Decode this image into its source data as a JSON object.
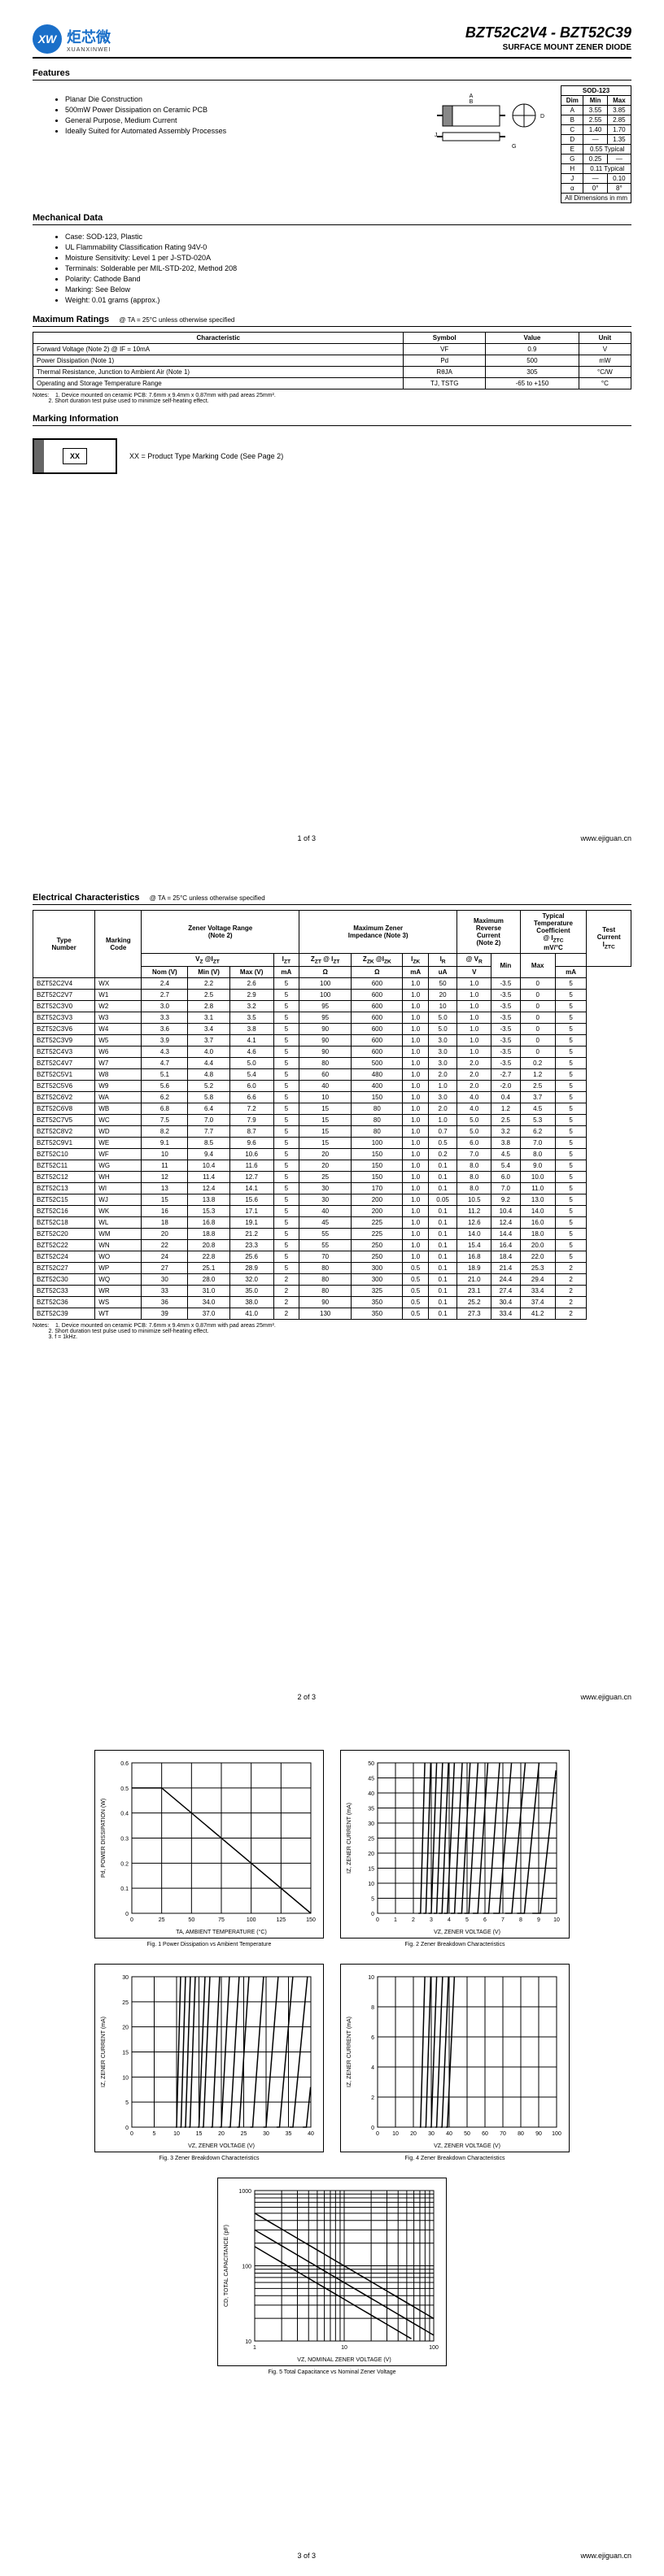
{
  "header": {
    "brand": "炬芯微",
    "brand_en": "XUANXINWEI",
    "logo": "XW",
    "title": "BZT52C2V4 - BZT52C39",
    "subtitle": "SURFACE MOUNT ZENER DIODE"
  },
  "features": [
    "Planar Die Construction",
    "500mW Power Dissipation on Ceramic PCB",
    "General Purpose, Medium Current",
    "Ideally Suited for Automated Assembly Processes"
  ],
  "mechanical": [
    "Case: SOD-123, Plastic",
    "UL Flammability Classification Rating 94V-0",
    "Moisture Sensitivity: Level 1 per J-STD-020A",
    "Terminals: Solderable per MIL-STD-202, Method 208",
    "Polarity: Cathode Band",
    "Marking: See Below",
    "Weight: 0.01 grams (approx.)"
  ],
  "dim_title": "SOD-123",
  "dim_headers": [
    "Dim",
    "Min",
    "Max"
  ],
  "dim_rows": [
    [
      "A",
      "3.55",
      "3.85"
    ],
    [
      "B",
      "2.55",
      "2.85"
    ],
    [
      "C",
      "1.40",
      "1.70"
    ],
    [
      "D",
      "—",
      "1.35"
    ],
    [
      "E",
      "0.55 Typical",
      ""
    ],
    [
      "G",
      "0.25",
      "—"
    ],
    [
      "H",
      "0.11 Typical",
      ""
    ],
    [
      "J",
      "—",
      "0.10"
    ],
    [
      "α",
      "0°",
      "8°"
    ]
  ],
  "dim_footer": "All Dimensions in mm",
  "ratings_title": "Maximum Ratings",
  "ratings_cond": "@ TA = 25°C unless otherwise specified",
  "ratings_headers": [
    "Characteristic",
    "Symbol",
    "Value",
    "Unit"
  ],
  "ratings_rows": [
    [
      "Forward Voltage (Note 2)              @ IF = 10mA",
      "VF",
      "0.9",
      "V"
    ],
    [
      "Power Dissipation (Note 1)",
      "Pd",
      "500",
      "mW"
    ],
    [
      "Thermal Resistance, Junction to Ambient Air (Note 1)",
      "RθJA",
      "305",
      "°C/W"
    ],
    [
      "Operating and Storage Temperature Range",
      "TJ, TSTG",
      "-65 to +150",
      "°C"
    ]
  ],
  "ratings_notes": "Notes:    1. Device mounted on ceramic PCB: 7.6mm x 9.4mm x 0.87mm with pad areas 25mm².\n          2. Short duration test pulse used to minimize self-heating effect.",
  "marking_title": "Marking Information",
  "marking_code": "XX",
  "marking_desc": "XX = Product Type Marking Code (See Page 2)",
  "elec_title": "Electrical Characteristics",
  "elec_cond": "@ TA = 25°C unless otherwise specified",
  "elec_notes": "Notes:    1. Device mounted on ceramic PCB: 7.6mm x 9.4mm x 0.87mm with pad areas 25mm².\n          2. Short duration test pulse used to minimize self-heating effect.\n          3. f = 1kHz.",
  "elec_rows": [
    [
      "BZT52C2V4",
      "WX",
      "2.4",
      "2.2",
      "2.6",
      "5",
      "100",
      "600",
      "1.0",
      "50",
      "1.0",
      "-3.5",
      "0",
      "5"
    ],
    [
      "BZT52C2V7",
      "W1",
      "2.7",
      "2.5",
      "2.9",
      "5",
      "100",
      "600",
      "1.0",
      "20",
      "1.0",
      "-3.5",
      "0",
      "5"
    ],
    [
      "BZT52C3V0",
      "W2",
      "3.0",
      "2.8",
      "3.2",
      "5",
      "95",
      "600",
      "1.0",
      "10",
      "1.0",
      "-3.5",
      "0",
      "5"
    ],
    [
      "BZT52C3V3",
      "W3",
      "3.3",
      "3.1",
      "3.5",
      "5",
      "95",
      "600",
      "1.0",
      "5.0",
      "1.0",
      "-3.5",
      "0",
      "5"
    ],
    [
      "BZT52C3V6",
      "W4",
      "3.6",
      "3.4",
      "3.8",
      "5",
      "90",
      "600",
      "1.0",
      "5.0",
      "1.0",
      "-3.5",
      "0",
      "5"
    ],
    [
      "BZT52C3V9",
      "W5",
      "3.9",
      "3.7",
      "4.1",
      "5",
      "90",
      "600",
      "1.0",
      "3.0",
      "1.0",
      "-3.5",
      "0",
      "5"
    ],
    [
      "BZT52C4V3",
      "W6",
      "4.3",
      "4.0",
      "4.6",
      "5",
      "90",
      "600",
      "1.0",
      "3.0",
      "1.0",
      "-3.5",
      "0",
      "5"
    ],
    [
      "BZT52C4V7",
      "W7",
      "4.7",
      "4.4",
      "5.0",
      "5",
      "80",
      "500",
      "1.0",
      "3.0",
      "2.0",
      "-3.5",
      "0.2",
      "5"
    ],
    [
      "BZT52C5V1",
      "W8",
      "5.1",
      "4.8",
      "5.4",
      "5",
      "60",
      "480",
      "1.0",
      "2.0",
      "2.0",
      "-2.7",
      "1.2",
      "5"
    ],
    [
      "BZT52C5V6",
      "W9",
      "5.6",
      "5.2",
      "6.0",
      "5",
      "40",
      "400",
      "1.0",
      "1.0",
      "2.0",
      "-2.0",
      "2.5",
      "5"
    ],
    [
      "BZT52C6V2",
      "WA",
      "6.2",
      "5.8",
      "6.6",
      "5",
      "10",
      "150",
      "1.0",
      "3.0",
      "4.0",
      "0.4",
      "3.7",
      "5"
    ],
    [
      "BZT52C6V8",
      "WB",
      "6.8",
      "6.4",
      "7.2",
      "5",
      "15",
      "80",
      "1.0",
      "2.0",
      "4.0",
      "1.2",
      "4.5",
      "5"
    ],
    [
      "BZT52C7V5",
      "WC",
      "7.5",
      "7.0",
      "7.9",
      "5",
      "15",
      "80",
      "1.0",
      "1.0",
      "5.0",
      "2.5",
      "5.3",
      "5"
    ],
    [
      "BZT52C8V2",
      "WD",
      "8.2",
      "7.7",
      "8.7",
      "5",
      "15",
      "80",
      "1.0",
      "0.7",
      "5.0",
      "3.2",
      "6.2",
      "5"
    ],
    [
      "BZT52C9V1",
      "WE",
      "9.1",
      "8.5",
      "9.6",
      "5",
      "15",
      "100",
      "1.0",
      "0.5",
      "6.0",
      "3.8",
      "7.0",
      "5"
    ],
    [
      "BZT52C10",
      "WF",
      "10",
      "9.4",
      "10.6",
      "5",
      "20",
      "150",
      "1.0",
      "0.2",
      "7.0",
      "4.5",
      "8.0",
      "5"
    ],
    [
      "BZT52C11",
      "WG",
      "11",
      "10.4",
      "11.6",
      "5",
      "20",
      "150",
      "1.0",
      "0.1",
      "8.0",
      "5.4",
      "9.0",
      "5"
    ],
    [
      "BZT52C12",
      "WH",
      "12",
      "11.4",
      "12.7",
      "5",
      "25",
      "150",
      "1.0",
      "0.1",
      "8.0",
      "6.0",
      "10.0",
      "5"
    ],
    [
      "BZT52C13",
      "WI",
      "13",
      "12.4",
      "14.1",
      "5",
      "30",
      "170",
      "1.0",
      "0.1",
      "8.0",
      "7.0",
      "11.0",
      "5"
    ],
    [
      "BZT52C15",
      "WJ",
      "15",
      "13.8",
      "15.6",
      "5",
      "30",
      "200",
      "1.0",
      "0.05",
      "10.5",
      "9.2",
      "13.0",
      "5"
    ],
    [
      "BZT52C16",
      "WK",
      "16",
      "15.3",
      "17.1",
      "5",
      "40",
      "200",
      "1.0",
      "0.1",
      "11.2",
      "10.4",
      "14.0",
      "5"
    ],
    [
      "BZT52C18",
      "WL",
      "18",
      "16.8",
      "19.1",
      "5",
      "45",
      "225",
      "1.0",
      "0.1",
      "12.6",
      "12.4",
      "16.0",
      "5"
    ],
    [
      "BZT52C20",
      "WM",
      "20",
      "18.8",
      "21.2",
      "5",
      "55",
      "225",
      "1.0",
      "0.1",
      "14.0",
      "14.4",
      "18.0",
      "5"
    ],
    [
      "BZT52C22",
      "WN",
      "22",
      "20.8",
      "23.3",
      "5",
      "55",
      "250",
      "1.0",
      "0.1",
      "15.4",
      "16.4",
      "20.0",
      "5"
    ],
    [
      "BZT52C24",
      "WO",
      "24",
      "22.8",
      "25.6",
      "5",
      "70",
      "250",
      "1.0",
      "0.1",
      "16.8",
      "18.4",
      "22.0",
      "5"
    ],
    [
      "BZT52C27",
      "WP",
      "27",
      "25.1",
      "28.9",
      "5",
      "80",
      "300",
      "0.5",
      "0.1",
      "18.9",
      "21.4",
      "25.3",
      "2"
    ],
    [
      "BZT52C30",
      "WQ",
      "30",
      "28.0",
      "32.0",
      "2",
      "80",
      "300",
      "0.5",
      "0.1",
      "21.0",
      "24.4",
      "29.4",
      "2"
    ],
    [
      "BZT52C33",
      "WR",
      "33",
      "31.0",
      "35.0",
      "2",
      "80",
      "325",
      "0.5",
      "0.1",
      "23.1",
      "27.4",
      "33.4",
      "2"
    ],
    [
      "BZT52C36",
      "WS",
      "36",
      "34.0",
      "38.0",
      "2",
      "90",
      "350",
      "0.5",
      "0.1",
      "25.2",
      "30.4",
      "37.4",
      "2"
    ],
    [
      "BZT52C39",
      "WT",
      "39",
      "37.0",
      "41.0",
      "2",
      "130",
      "350",
      "0.5",
      "0.1",
      "27.3",
      "33.4",
      "41.2",
      "2"
    ]
  ],
  "footer_url": "www.ejiguan.cn",
  "page1": "1 of 3",
  "page2": "2 of 3",
  "page3": "3 of 3",
  "charts": {
    "fig1": {
      "title": "Fig. 1  Power Dissipation vs Ambient Temperature",
      "xlabel": "TA, AMBIENT TEMPERATURE (°C)",
      "ylabel": "Pd,  POWER DISSIPATION (W)",
      "xlim": [
        0,
        150
      ],
      "ylim": [
        0,
        0.6
      ],
      "xticks": [
        0,
        25,
        50,
        75,
        100,
        125,
        150
      ],
      "yticks": [
        0,
        0.1,
        0.2,
        0.3,
        0.4,
        0.5,
        0.6
      ],
      "line": [
        [
          0,
          0.5
        ],
        [
          25,
          0.5
        ],
        [
          150,
          0
        ]
      ]
    },
    "fig2": {
      "title": "Fig. 2  Zener Breakdown Characteristics",
      "xlabel": "VZ, ZENER VOLTAGE (V)",
      "ylabel": "IZ, ZENER CURRENT (mA)",
      "xlim": [
        0,
        10
      ],
      "ylim": [
        0,
        50
      ],
      "xticks": [
        0,
        1,
        2,
        3,
        4,
        5,
        6,
        7,
        8,
        9,
        10
      ],
      "yticks": [
        0,
        5,
        10,
        15,
        20,
        25,
        30,
        35,
        40,
        45,
        50
      ]
    },
    "fig3": {
      "title": "Fig. 3  Zener Breakdown Characteristics",
      "xlabel": "VZ, ZENER VOLTAGE (V)",
      "ylabel": "IZ, ZENER CURRENT (mA)",
      "xlim": [
        0,
        40
      ],
      "ylim": [
        0,
        30
      ],
      "xticks": [
        0,
        5,
        10,
        15,
        20,
        25,
        30,
        35,
        40
      ],
      "yticks": [
        0,
        5,
        10,
        15,
        20,
        25,
        30
      ]
    },
    "fig4": {
      "title": "Fig. 4  Zener Breakdown Characteristics",
      "xlabel": "VZ, ZENER VOLTAGE (V)",
      "ylabel": "IZ, ZENER CURRENT (mA)",
      "xlim": [
        0,
        100
      ],
      "ylim": [
        0,
        10
      ],
      "xticks": [
        0,
        10,
        20,
        30,
        40,
        50,
        60,
        70,
        80,
        90,
        100
      ],
      "yticks": [
        0,
        2,
        4,
        6,
        8,
        10
      ]
    },
    "fig5": {
      "title": "Fig. 5  Total Capacitance vs Nominal Zener Voltage",
      "xlabel": "VZ, NOMINAL ZENER VOLTAGE (V)",
      "ylabel": "CD, TOTAL CAPACITANCE (pF)",
      "xlim": [
        1,
        100
      ],
      "ylim": [
        10,
        1000
      ]
    }
  }
}
